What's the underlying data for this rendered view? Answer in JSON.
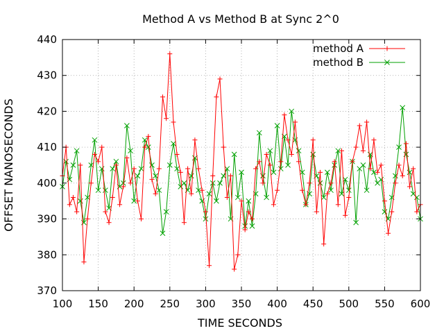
{
  "chart_data": {
    "type": "line",
    "title": "Method A vs Method B at Sync 2^0",
    "xlabel": "TIME SECONDS",
    "ylabel": "OFFSET NANOSECONDS",
    "xlim": [
      100,
      600
    ],
    "ylim": [
      370,
      440
    ],
    "x_ticks": [
      100,
      150,
      200,
      250,
      300,
      350,
      400,
      450,
      500,
      550,
      600
    ],
    "y_ticks": [
      370,
      380,
      390,
      400,
      410,
      420,
      430,
      440
    ],
    "x_tick_labels": [
      "100",
      "150",
      "200",
      "250",
      "300",
      "350",
      "400",
      "450",
      "500",
      "550",
      "600"
    ],
    "y_tick_labels": [
      "370",
      "380",
      "390",
      "400",
      "410",
      "420",
      "430",
      "440"
    ],
    "grid": true,
    "legend_position": "top-right",
    "x": [
      100,
      105,
      110,
      115,
      120,
      125,
      130,
      135,
      140,
      145,
      150,
      155,
      160,
      165,
      170,
      175,
      180,
      185,
      190,
      195,
      200,
      205,
      210,
      215,
      220,
      225,
      230,
      235,
      240,
      245,
      250,
      255,
      260,
      265,
      270,
      275,
      280,
      285,
      290,
      295,
      300,
      305,
      310,
      315,
      320,
      325,
      330,
      335,
      340,
      345,
      350,
      355,
      360,
      365,
      370,
      375,
      380,
      385,
      390,
      395,
      400,
      405,
      410,
      415,
      420,
      425,
      430,
      435,
      440,
      445,
      450,
      455,
      460,
      465,
      470,
      475,
      480,
      485,
      490,
      495,
      500,
      505,
      510,
      515,
      520,
      525,
      530,
      535,
      540,
      545,
      550,
      555,
      560,
      565,
      570,
      575,
      580,
      585,
      590,
      595,
      600
    ],
    "series": [
      {
        "name": "method A",
        "color": "#ff0000",
        "marker": "plus",
        "values": [
          402,
          410,
          394,
          396,
          392,
          405,
          378,
          390,
          400,
          408,
          406,
          410,
          392,
          389,
          396,
          405,
          394,
          399,
          407,
          400,
          404,
          395,
          390,
          410,
          413,
          401,
          397,
          404,
          424,
          418,
          436,
          417,
          408,
          403,
          389,
          404,
          397,
          412,
          404,
          398,
          392,
          377,
          402,
          424,
          429,
          410,
          396,
          402,
          376,
          380,
          395,
          387,
          392,
          390,
          404,
          406,
          400,
          408,
          405,
          394,
          398,
          406,
          419,
          412,
          408,
          417,
          406,
          398,
          394,
          400,
          412,
          392,
          403,
          383,
          397,
          400,
          406,
          394,
          409,
          391,
          396,
          406,
          410,
          416,
          409,
          417,
          404,
          412,
          403,
          405,
          395,
          386,
          392,
          400,
          405,
          402,
          411,
          399,
          404,
          392,
          394
        ]
      },
      {
        "name": "method B",
        "color": "#00a000",
        "marker": "x",
        "values": [
          399,
          406,
          401,
          405,
          409,
          395,
          389,
          396,
          405,
          412,
          398,
          404,
          398,
          393,
          404,
          406,
          399,
          400,
          416,
          409,
          395,
          402,
          404,
          412,
          410,
          405,
          402,
          398,
          386,
          392,
          405,
          411,
          404,
          399,
          400,
          398,
          402,
          407,
          398,
          395,
          390,
          397,
          400,
          395,
          400,
          402,
          404,
          390,
          408,
          396,
          403,
          388,
          395,
          388,
          397,
          414,
          402,
          396,
          409,
          403,
          416,
          404,
          413,
          405,
          420,
          412,
          409,
          403,
          394,
          397,
          408,
          402,
          400,
          396,
          403,
          398,
          405,
          409,
          397,
          401,
          398,
          406,
          389,
          404,
          405,
          398,
          408,
          403,
          400,
          401,
          392,
          390,
          396,
          402,
          410,
          421,
          408,
          403,
          397,
          396,
          390
        ]
      }
    ]
  }
}
